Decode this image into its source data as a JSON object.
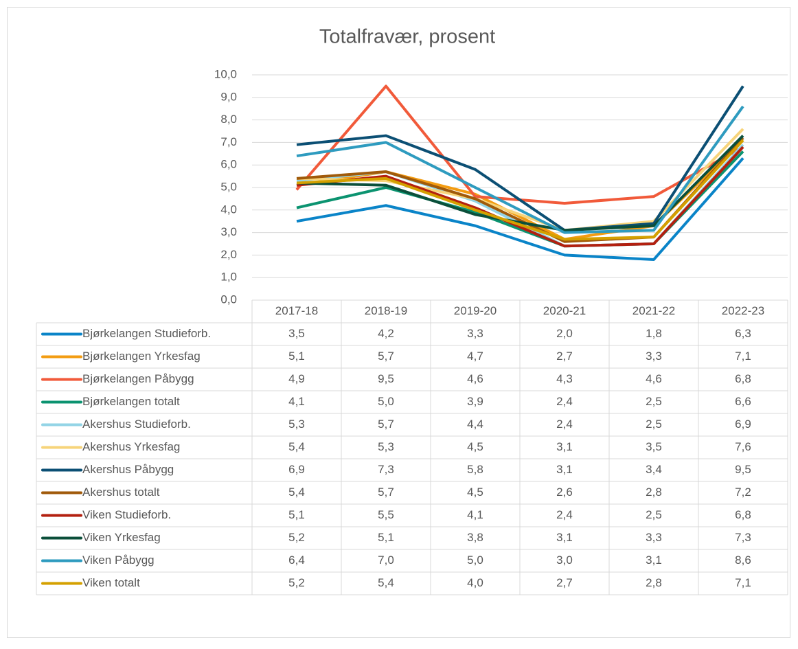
{
  "chart_data": {
    "type": "line",
    "title": "Totalfravær, prosent",
    "categories": [
      "2017-18",
      "2018-19",
      "2019-20",
      "2020-21",
      "2021-22",
      "2022-23"
    ],
    "ylim": [
      0,
      10
    ],
    "yticks": [
      {
        "value": 0,
        "label": "0,0"
      },
      {
        "value": 1,
        "label": "1,0"
      },
      {
        "value": 2,
        "label": "2,0"
      },
      {
        "value": 3,
        "label": "3,0"
      },
      {
        "value": 4,
        "label": "4,0"
      },
      {
        "value": 5,
        "label": "5,0"
      },
      {
        "value": 6,
        "label": "6,0"
      },
      {
        "value": 7,
        "label": "7,0"
      },
      {
        "value": 8,
        "label": "8,0"
      },
      {
        "value": 9,
        "label": "9,0"
      },
      {
        "value": 10,
        "label": "10,0"
      }
    ],
    "grid": true,
    "series": [
      {
        "name": "Bjørkelangen Studieforb.",
        "color": "#0a84c8",
        "values": [
          3.5,
          4.2,
          3.3,
          2.0,
          1.8,
          6.3
        ],
        "value_labels": [
          "3,5",
          "4,2",
          "3,3",
          "2,0",
          "1,8",
          "6,3"
        ]
      },
      {
        "name": "Bjørkelangen Yrkesfag",
        "color": "#f39c12",
        "values": [
          5.1,
          5.7,
          4.7,
          2.7,
          3.3,
          7.1
        ],
        "value_labels": [
          "5,1",
          "5,7",
          "4,7",
          "2,7",
          "3,3",
          "7,1"
        ]
      },
      {
        "name": "Bjørkelangen Påbygg",
        "color": "#f15a3a",
        "values": [
          4.9,
          9.5,
          4.6,
          4.3,
          4.6,
          6.8
        ],
        "value_labels": [
          "4,9",
          "9,5",
          "4,6",
          "4,3",
          "4,6",
          "6,8"
        ]
      },
      {
        "name": "Bjørkelangen totalt",
        "color": "#0b9370",
        "values": [
          4.1,
          5.0,
          3.9,
          2.4,
          2.5,
          6.6
        ],
        "value_labels": [
          "4,1",
          "5,0",
          "3,9",
          "2,4",
          "2,5",
          "6,6"
        ]
      },
      {
        "name": "Akershus Studieforb.",
        "color": "#93d4e6",
        "values": [
          5.3,
          5.7,
          4.4,
          2.4,
          2.5,
          6.9
        ],
        "value_labels": [
          "5,3",
          "5,7",
          "4,4",
          "2,4",
          "2,5",
          "6,9"
        ]
      },
      {
        "name": "Akershus Yrkesfag",
        "color": "#f7d47a",
        "values": [
          5.4,
          5.3,
          4.5,
          3.1,
          3.5,
          7.6
        ],
        "value_labels": [
          "5,4",
          "5,3",
          "4,5",
          "3,1",
          "3,5",
          "7,6"
        ]
      },
      {
        "name": "Akershus Påbygg",
        "color": "#0b4f74",
        "values": [
          6.9,
          7.3,
          5.8,
          3.1,
          3.4,
          9.5
        ],
        "value_labels": [
          "6,9",
          "7,3",
          "5,8",
          "3,1",
          "3,4",
          "9,5"
        ]
      },
      {
        "name": "Akershus totalt",
        "color": "#a05a0a",
        "values": [
          5.4,
          5.7,
          4.5,
          2.6,
          2.8,
          7.2
        ],
        "value_labels": [
          "5,4",
          "5,7",
          "4,5",
          "2,6",
          "2,8",
          "7,2"
        ]
      },
      {
        "name": "Viken Studieforb.",
        "color": "#b32010",
        "values": [
          5.1,
          5.5,
          4.1,
          2.4,
          2.5,
          6.8
        ],
        "value_labels": [
          "5,1",
          "5,5",
          "4,1",
          "2,4",
          "2,5",
          "6,8"
        ]
      },
      {
        "name": "Viken Yrkesfag",
        "color": "#0b4f3a",
        "values": [
          5.2,
          5.1,
          3.8,
          3.1,
          3.3,
          7.3
        ],
        "value_labels": [
          "5,2",
          "5,1",
          "3,8",
          "3,1",
          "3,3",
          "7,3"
        ]
      },
      {
        "name": "Viken Påbygg",
        "color": "#2e9bbf",
        "values": [
          6.4,
          7.0,
          5.0,
          3.0,
          3.1,
          8.6
        ],
        "value_labels": [
          "6,4",
          "7,0",
          "5,0",
          "3,0",
          "3,1",
          "8,6"
        ]
      },
      {
        "name": "Viken totalt",
        "color": "#d4a000",
        "values": [
          5.2,
          5.4,
          4.0,
          2.7,
          2.8,
          7.1
        ],
        "value_labels": [
          "5,2",
          "5,4",
          "4,0",
          "2,7",
          "2,8",
          "7,1"
        ]
      }
    ]
  }
}
